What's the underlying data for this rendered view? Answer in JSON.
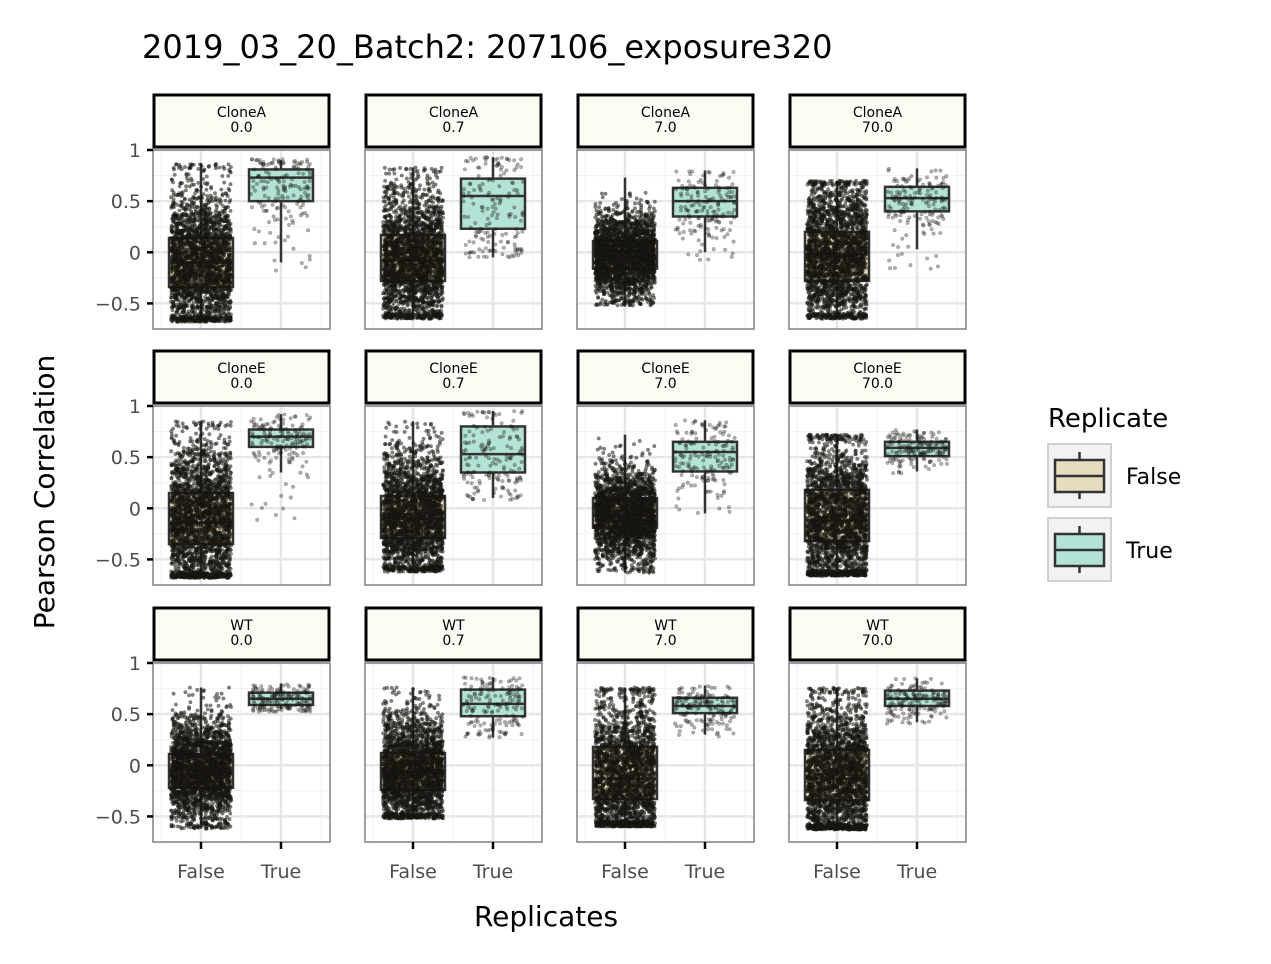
{
  "chart_data": {
    "type": "box",
    "title": "2019_03_20_Batch2: 207106_exposure320",
    "xlabel": "Replicates",
    "ylabel": "Pearson Correlation",
    "categories": [
      "False",
      "True"
    ],
    "y_ticks": [
      {
        "value": -0.5,
        "label": "−0.5"
      },
      {
        "value": 0,
        "label": "0"
      },
      {
        "value": 0.5,
        "label": "0.5"
      },
      {
        "value": 1,
        "label": "1"
      }
    ],
    "ylim": [
      -0.75,
      1.0
    ],
    "grid": true,
    "legend": {
      "title": "Replicate",
      "position": "right",
      "entries": [
        {
          "label": "False",
          "color": "#e8dcc0"
        },
        {
          "label": "True",
          "color": "#b3e3d6"
        }
      ]
    },
    "colors": {
      "false_fill": "#e8dcc0",
      "true_fill": "#b3e3d6",
      "strip_fill": "#fcfcf4",
      "point": "#1e1c14"
    },
    "panels": [
      {
        "row": "CloneA",
        "col": "0.0",
        "boxes": [
          {
            "category": "False",
            "lower": -0.68,
            "q1": -0.34,
            "median": -0.1,
            "q3": 0.14,
            "upper": 0.87,
            "points_min": -0.68,
            "points_max": 0.87,
            "n": 2400,
            "dense": true
          },
          {
            "category": "True",
            "lower": -0.1,
            "q1": 0.5,
            "median": 0.73,
            "q3": 0.81,
            "upper": 0.9,
            "points_min": -0.22,
            "points_max": 0.91,
            "n": 160,
            "dense": false
          }
        ]
      },
      {
        "row": "CloneA",
        "col": "0.7",
        "boxes": [
          {
            "category": "False",
            "lower": -0.65,
            "q1": -0.28,
            "median": -0.08,
            "q3": 0.17,
            "upper": 0.83,
            "points_min": -0.65,
            "points_max": 0.83,
            "n": 2400,
            "dense": true
          },
          {
            "category": "True",
            "lower": -0.05,
            "q1": 0.23,
            "median": 0.55,
            "q3": 0.72,
            "upper": 0.93,
            "points_min": -0.05,
            "points_max": 0.93,
            "n": 160,
            "dense": false
          }
        ]
      },
      {
        "row": "CloneA",
        "col": "7.0",
        "boxes": [
          {
            "category": "False",
            "lower": -0.52,
            "q1": -0.16,
            "median": -0.03,
            "q3": 0.11,
            "upper": 0.73,
            "points_min": -0.52,
            "points_max": 0.73,
            "n": 2400,
            "dense": true
          },
          {
            "category": "True",
            "lower": 0.0,
            "q1": 0.35,
            "median": 0.5,
            "q3": 0.63,
            "upper": 0.8,
            "points_min": -0.1,
            "points_max": 0.8,
            "n": 160,
            "dense": false
          }
        ]
      },
      {
        "row": "CloneA",
        "col": "70.0",
        "boxes": [
          {
            "category": "False",
            "lower": -0.65,
            "q1": -0.28,
            "median": -0.02,
            "q3": 0.2,
            "upper": 0.7,
            "points_min": -0.65,
            "points_max": 0.7,
            "n": 2400,
            "dense": true
          },
          {
            "category": "True",
            "lower": 0.03,
            "q1": 0.4,
            "median": 0.53,
            "q3": 0.64,
            "upper": 0.82,
            "points_min": -0.17,
            "points_max": 0.82,
            "n": 160,
            "dense": false
          }
        ]
      },
      {
        "row": "CloneE",
        "col": "0.0",
        "boxes": [
          {
            "category": "False",
            "lower": -0.68,
            "q1": -0.35,
            "median": -0.14,
            "q3": 0.15,
            "upper": 0.85,
            "points_min": -0.68,
            "points_max": 0.85,
            "n": 2400,
            "dense": true
          },
          {
            "category": "True",
            "lower": 0.35,
            "q1": 0.6,
            "median": 0.7,
            "q3": 0.77,
            "upper": 0.92,
            "points_min": -0.13,
            "points_max": 0.92,
            "n": 160,
            "dense": false
          }
        ]
      },
      {
        "row": "CloneE",
        "col": "0.7",
        "boxes": [
          {
            "category": "False",
            "lower": -0.62,
            "q1": -0.29,
            "median": -0.1,
            "q3": 0.12,
            "upper": 0.85,
            "points_min": -0.62,
            "points_max": 0.85,
            "n": 2400,
            "dense": true
          },
          {
            "category": "True",
            "lower": 0.1,
            "q1": 0.35,
            "median": 0.53,
            "q3": 0.8,
            "upper": 0.95,
            "points_min": 0.08,
            "points_max": 0.95,
            "n": 160,
            "dense": false
          }
        ]
      },
      {
        "row": "CloneE",
        "col": "7.0",
        "boxes": [
          {
            "category": "False",
            "lower": -0.63,
            "q1": -0.19,
            "median": -0.07,
            "q3": 0.1,
            "upper": 0.72,
            "points_min": -0.63,
            "points_max": 0.72,
            "n": 2400,
            "dense": true
          },
          {
            "category": "True",
            "lower": -0.05,
            "q1": 0.36,
            "median": 0.55,
            "q3": 0.65,
            "upper": 0.86,
            "points_min": -0.05,
            "points_max": 0.86,
            "n": 160,
            "dense": false
          }
        ]
      },
      {
        "row": "CloneE",
        "col": "70.0",
        "boxes": [
          {
            "category": "False",
            "lower": -0.66,
            "q1": -0.32,
            "median": -0.12,
            "q3": 0.18,
            "upper": 0.72,
            "points_min": -0.66,
            "points_max": 0.72,
            "n": 2400,
            "dense": true
          },
          {
            "category": "True",
            "lower": 0.36,
            "q1": 0.51,
            "median": 0.59,
            "q3": 0.65,
            "upper": 0.77,
            "points_min": 0.34,
            "points_max": 0.77,
            "n": 160,
            "dense": false
          }
        ]
      },
      {
        "row": "WT",
        "col": "0.0",
        "boxes": [
          {
            "category": "False",
            "lower": -0.62,
            "q1": -0.22,
            "median": -0.05,
            "q3": 0.11,
            "upper": 0.76,
            "points_min": -0.62,
            "points_max": 0.76,
            "n": 2400,
            "dense": true
          },
          {
            "category": "True",
            "lower": 0.55,
            "q1": 0.59,
            "median": 0.65,
            "q3": 0.71,
            "upper": 0.8,
            "points_min": 0.52,
            "points_max": 0.81,
            "n": 160,
            "dense": false
          }
        ]
      },
      {
        "row": "WT",
        "col": "0.7",
        "boxes": [
          {
            "category": "False",
            "lower": -0.52,
            "q1": -0.24,
            "median": -0.07,
            "q3": 0.12,
            "upper": 0.76,
            "points_min": -0.52,
            "points_max": 0.76,
            "n": 2400,
            "dense": true
          },
          {
            "category": "True",
            "lower": 0.27,
            "q1": 0.48,
            "median": 0.6,
            "q3": 0.74,
            "upper": 0.86,
            "points_min": 0.27,
            "points_max": 0.86,
            "n": 160,
            "dense": false
          }
        ]
      },
      {
        "row": "WT",
        "col": "7.0",
        "boxes": [
          {
            "category": "False",
            "lower": -0.6,
            "q1": -0.33,
            "median": -0.13,
            "q3": 0.18,
            "upper": 0.76,
            "points_min": -0.6,
            "points_max": 0.76,
            "n": 2400,
            "dense": true
          },
          {
            "category": "True",
            "lower": 0.3,
            "q1": 0.51,
            "median": 0.58,
            "q3": 0.66,
            "upper": 0.78,
            "points_min": 0.28,
            "points_max": 0.78,
            "n": 160,
            "dense": false
          }
        ]
      },
      {
        "row": "WT",
        "col": "70.0",
        "boxes": [
          {
            "category": "False",
            "lower": -0.63,
            "q1": -0.34,
            "median": -0.13,
            "q3": 0.15,
            "upper": 0.76,
            "points_min": -0.63,
            "points_max": 0.76,
            "n": 2400,
            "dense": true
          },
          {
            "category": "True",
            "lower": 0.42,
            "q1": 0.58,
            "median": 0.65,
            "q3": 0.73,
            "upper": 0.85,
            "points_min": 0.4,
            "points_max": 0.85,
            "n": 160,
            "dense": false
          }
        ]
      }
    ]
  }
}
